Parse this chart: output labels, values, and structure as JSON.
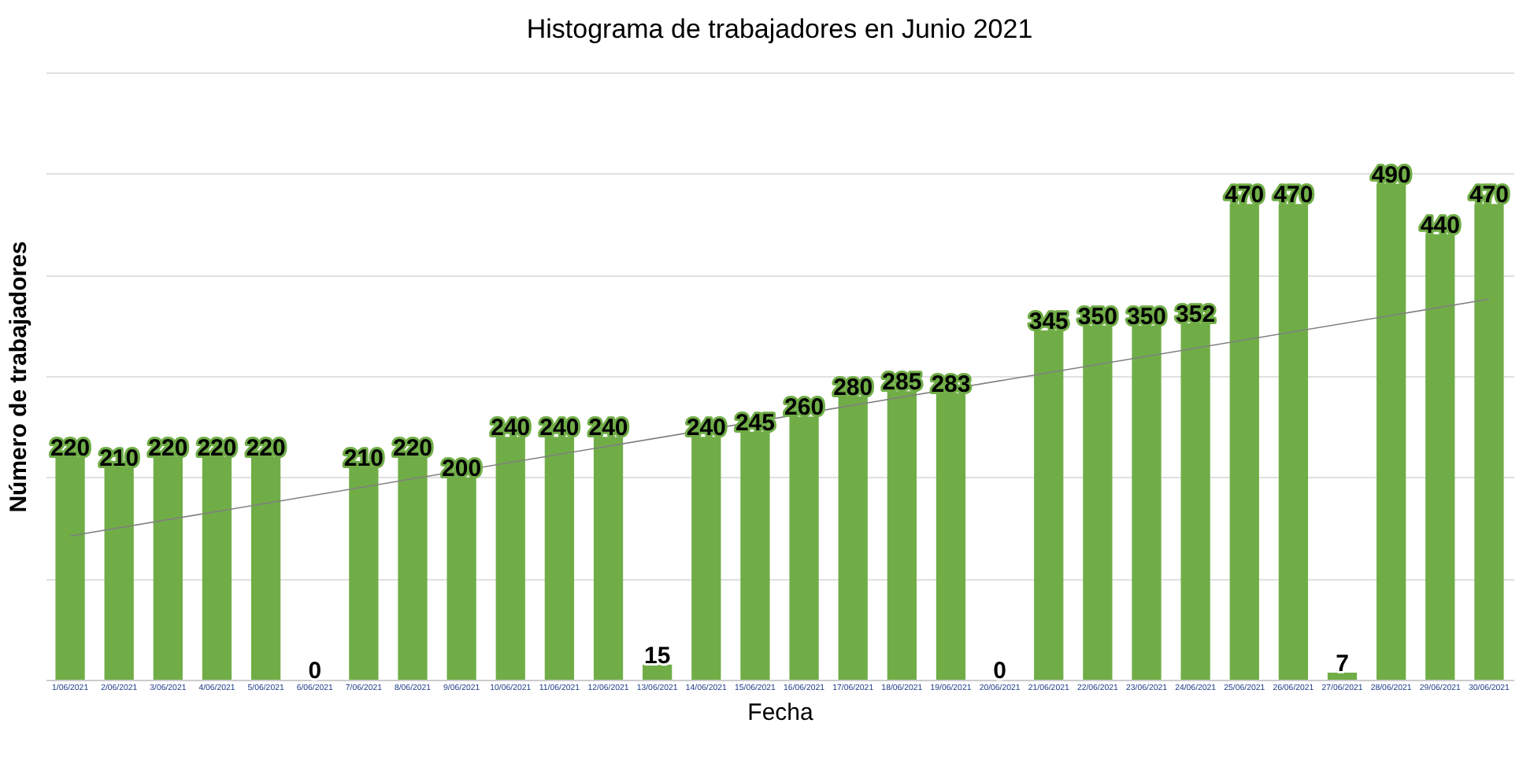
{
  "chart_data": {
    "type": "bar",
    "title": "Histograma de trabajadores en  Junio 2021",
    "xlabel": "Fecha",
    "ylabel": "Número de trabajadores",
    "categories": [
      "1/06/2021",
      "2/06/2021",
      "3/06/2021",
      "4/06/2021",
      "5/06/2021",
      "6/06/2021",
      "7/06/2021",
      "8/06/2021",
      "9/06/2021",
      "10/06/2021",
      "11/06/2021",
      "12/06/2021",
      "13/06/2021",
      "14/06/2021",
      "15/06/2021",
      "16/06/2021",
      "17/06/2021",
      "18/06/2021",
      "19/06/2021",
      "20/06/2021",
      "21/06/2021",
      "22/06/2021",
      "23/06/2021",
      "24/06/2021",
      "25/06/2021",
      "26/06/2021",
      "27/06/2021",
      "28/06/2021",
      "29/06/2021",
      "30/06/2021"
    ],
    "series": [
      {
        "color": "#70ad47",
        "values": [
          220,
          210,
          220,
          220,
          220,
          0,
          210,
          220,
          200,
          240,
          240,
          240,
          15,
          240,
          245,
          260,
          280,
          285,
          283,
          0,
          345,
          350,
          350,
          352,
          470,
          470,
          7,
          490,
          440,
          470
        ],
        "value_labels": [
          "220",
          "210",
          "220",
          "220",
          "220",
          "0",
          "210",
          "220",
          "200",
          "240",
          "240",
          "240",
          "15",
          "240",
          "245",
          "260",
          "280",
          "285",
          "283",
          "0",
          "345",
          "350",
          "350",
          "352",
          "470",
          "470",
          "7",
          "490",
          "440",
          "470"
        ]
      },
      {
        "type": "line",
        "color": "#808080",
        "x": [
          "1/06/2021",
          "30/06/2021"
        ],
        "values": [
          142,
          376
        ]
      }
    ],
    "ylim": [
      0,
      600
    ],
    "yticks": [
      {
        "value": 0,
        "label": null
      },
      {
        "value": 100,
        "label": null
      },
      {
        "value": 200,
        "label": null
      },
      {
        "value": 300,
        "label": null
      },
      {
        "value": 400,
        "label": null
      },
      {
        "value": 500,
        "label": null
      },
      {
        "value": 600,
        "label": null
      }
    ],
    "grid": "y",
    "tick_labels": "x"
  }
}
